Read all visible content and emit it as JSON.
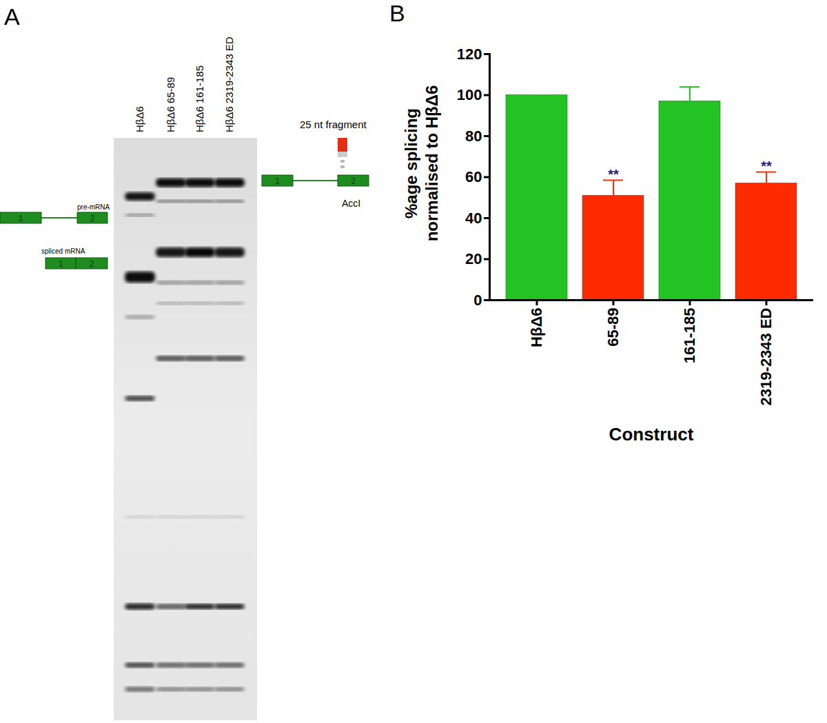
{
  "panel_a": {
    "label": "A",
    "lanes": [
      "HβΔ6",
      "HβΔ6 65-89",
      "HβΔ6 161-185",
      "HβΔ6 2319-2343 ED"
    ],
    "pre_mrna_label": "pre-mRNA",
    "spliced_mrna_label": "spliced mRNA",
    "exon_labels": [
      "1",
      "2"
    ],
    "probe_label": "25 nt fragment",
    "site_label": "AccI"
  },
  "chart_data": {
    "type": "bar",
    "title": "B",
    "ylabel": "%age splicing\nnormalised to HβΔ6",
    "xlabel": "Construct",
    "categories": [
      "HβΔ6",
      "65-89",
      "161-185",
      "2319-2343 ED"
    ],
    "values": [
      100,
      51,
      97,
      57
    ],
    "errors": [
      0,
      7.5,
      7,
      5.5
    ],
    "colors": [
      "#22c322",
      "#ff2a00",
      "#22c322",
      "#ff2a00"
    ],
    "ylim": [
      0,
      120
    ],
    "yticks": [
      0,
      20,
      40,
      60,
      80,
      100,
      120
    ],
    "annotations": [
      {
        "category": "65-89",
        "text": "**"
      },
      {
        "category": "2319-2343 ED",
        "text": "**"
      }
    ],
    "grid": false
  }
}
